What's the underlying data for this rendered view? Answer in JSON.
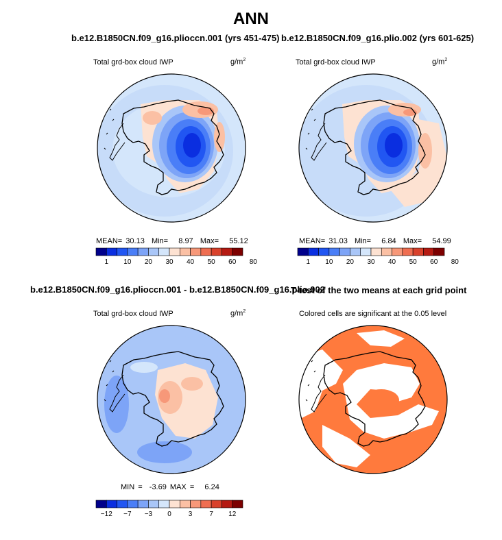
{
  "page": {
    "title": "ANN"
  },
  "colors": {
    "land_outline": "#000000",
    "ocean_light": "#d6e8fb",
    "sig_orange": "#ff7a3d",
    "nonsig": "#ffffff"
  },
  "panels": [
    {
      "title": "b.e12.B1850CN.f09_g16.plioccn.001 (yrs 451-475)",
      "variable": "Total grd-box cloud IWP",
      "units_base": "g/m",
      "units_exp": "2",
      "stats": {
        "mean_label": "MEAN=",
        "mean": "30.13",
        "min_label": "Min=",
        "min": "8.97",
        "max_label": "Max=",
        "max": "55.12"
      },
      "colorbar": {
        "colors": [
          "#00008b",
          "#0a2ee0",
          "#2156f2",
          "#4a7ef7",
          "#7da4f7",
          "#a9c6f8",
          "#d4e6fb",
          "#fde2d2",
          "#fbc0a4",
          "#f79879",
          "#ef6e51",
          "#d9412b",
          "#b51a12",
          "#7d0000"
        ],
        "labels": [
          "1",
          "10",
          "20",
          "30",
          "40",
          "50",
          "60",
          "80"
        ]
      }
    },
    {
      "title": "b.e12.B1850CN.f09_g16.plio.002 (yrs 601-625)",
      "variable": "Total grd-box cloud IWP",
      "units_base": "g/m",
      "units_exp": "2",
      "stats": {
        "mean_label": "MEAN=",
        "mean": "31.03",
        "min_label": "Min=",
        "min": "6.84",
        "max_label": "Max=",
        "max": "54.99"
      },
      "colorbar": {
        "colors": [
          "#00008b",
          "#0a2ee0",
          "#2156f2",
          "#4a7ef7",
          "#7da4f7",
          "#a9c6f8",
          "#d4e6fb",
          "#fde2d2",
          "#fbc0a4",
          "#f79879",
          "#ef6e51",
          "#d9412b",
          "#b51a12",
          "#7d0000"
        ],
        "labels": [
          "1",
          "10",
          "20",
          "30",
          "40",
          "50",
          "60",
          "80"
        ]
      }
    },
    {
      "title": "b.e12.B1850CN.f09_g16.plioccn.001 - b.e12.B1850CN.f09_g16.plio.002",
      "variable": "Total grd-box cloud IWP",
      "units_base": "g/m",
      "units_exp": "2",
      "stats": {
        "min_label": "MIN =",
        "min": "-3.69",
        "max_label": "MAX =",
        "max": "6.24"
      },
      "colorbar": {
        "colors": [
          "#00008b",
          "#0a2ee0",
          "#2156f2",
          "#4a7ef7",
          "#7da4f7",
          "#a9c6f8",
          "#d4e6fb",
          "#fde2d2",
          "#fbc0a4",
          "#f79879",
          "#ef6e51",
          "#d9412b",
          "#b51a12",
          "#7d0000"
        ],
        "labels": [
          "−12",
          "−7",
          "−3",
          "0",
          "3",
          "7",
          "12"
        ]
      }
    },
    {
      "title": "T-test of the two means at each grid point",
      "subtitle": "Colored cells are significant at the 0.05 level"
    }
  ],
  "chart_data": [
    {
      "type": "heatmap",
      "projection": "south-polar stereographic",
      "title": "b.e12.B1850CN.f09_g16.plioccn.001 (yrs 451-475)",
      "variable": "Total grd-box cloud IWP",
      "units": "g/m^2",
      "contour_levels": [
        1,
        5,
        10,
        15,
        20,
        25,
        30,
        35,
        40,
        45,
        50,
        60,
        70,
        80
      ],
      "mean": 30.13,
      "min": 8.97,
      "max": 55.12
    },
    {
      "type": "heatmap",
      "projection": "south-polar stereographic",
      "title": "b.e12.B1850CN.f09_g16.plio.002 (yrs 601-625)",
      "variable": "Total grd-box cloud IWP",
      "units": "g/m^2",
      "contour_levels": [
        1,
        5,
        10,
        15,
        20,
        25,
        30,
        35,
        40,
        45,
        50,
        60,
        70,
        80
      ],
      "mean": 31.03,
      "min": 6.84,
      "max": 54.99
    },
    {
      "type": "heatmap",
      "projection": "south-polar stereographic",
      "title": "b.e12.B1850CN.f09_g16.plioccn.001 - b.e12.B1850CN.f09_g16.plio.002",
      "variable": "Total grd-box cloud IWP",
      "units": "g/m^2",
      "contour_levels": [
        -12,
        -9,
        -7,
        -5,
        -3,
        -1,
        0,
        1,
        3,
        5,
        7,
        9,
        12
      ],
      "min": -3.69,
      "max": 6.24
    },
    {
      "type": "heatmap",
      "projection": "south-polar stereographic",
      "title": "T-test of the two means at each grid point",
      "subtitle": "Colored cells are significant at the 0.05 level",
      "significance_level": 0.05
    }
  ]
}
